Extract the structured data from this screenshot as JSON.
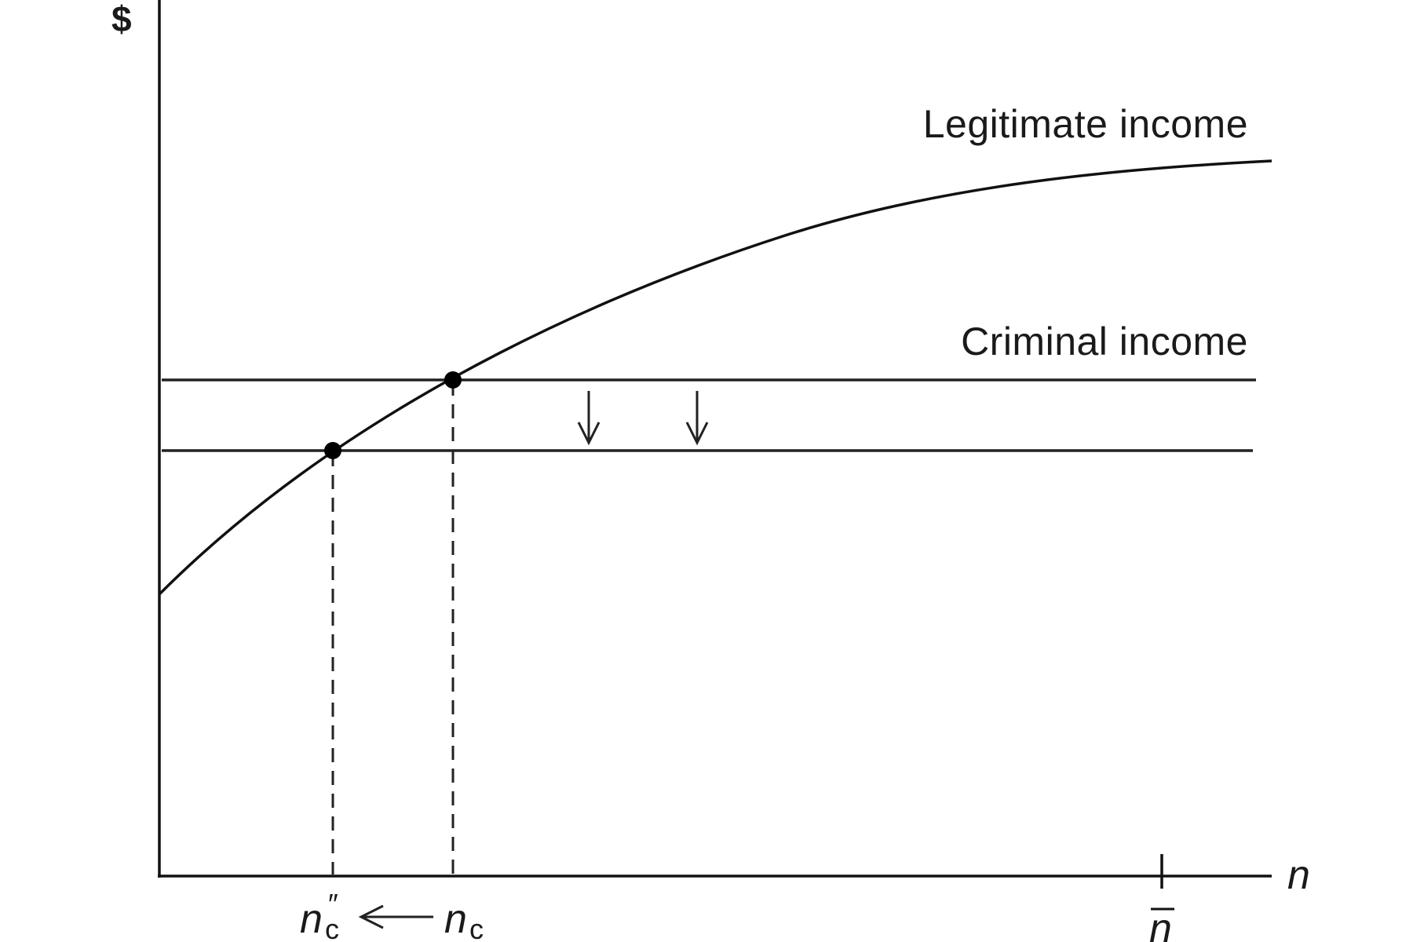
{
  "diagram": {
    "y_axis_label": "$",
    "x_axis_label": "n",
    "curves": {
      "legitimate_income": "Legitimate income",
      "criminal_income": "Criminal income"
    },
    "x_markers": {
      "n_c_double_prime": {
        "symbol": "n",
        "subscript": "c",
        "superscript": "″"
      },
      "n_c": {
        "symbol": "n",
        "subscript": "c"
      },
      "n_bar": {
        "symbol": "n",
        "accent": "bar"
      }
    },
    "shift_arrow_direction": "down",
    "equilibrium_shift": "left"
  }
}
